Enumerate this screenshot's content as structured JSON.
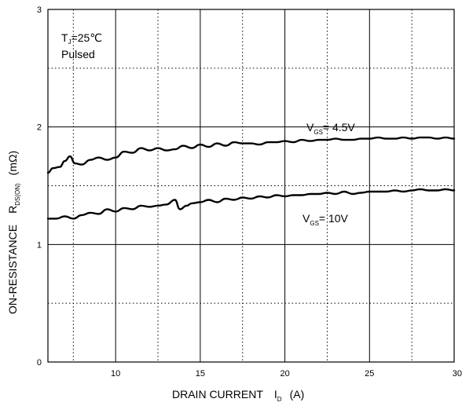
{
  "chart_data": {
    "type": "line",
    "xlabel": {
      "text": "DRAIN CURRENT",
      "symbol": "I",
      "subscript": "D",
      "unit": "(A)"
    },
    "ylabel": {
      "text": "ON-RESISTANCE",
      "symbol": "R",
      "subscript": "DS(ON)",
      "unit": "(mΩ)"
    },
    "xlim": [
      6,
      30
    ],
    "ylim": [
      0,
      3
    ],
    "x_ticks": [
      "10",
      "15",
      "20",
      "25",
      "30"
    ],
    "y_ticks": [
      "0",
      "1",
      "2",
      "3"
    ],
    "grid": {
      "solid_x": [
        10,
        15,
        20,
        25
      ],
      "solid_y": [
        1,
        2
      ],
      "dotted_x": [
        7.5,
        12.5,
        17.5,
        22.5,
        27.5
      ],
      "dotted_y": [
        0.5,
        1.5,
        2.5
      ]
    },
    "conditions": {
      "line1": {
        "symbol": "T",
        "subscript": "J",
        "rest": "=25℃"
      },
      "line2": "Pulsed"
    },
    "series": [
      {
        "name": "4.5V",
        "label": {
          "prefix": "V",
          "subscript": "GS",
          "suffix": "= 4.5V"
        },
        "color": "#000000",
        "points": [
          [
            6.0,
            1.61
          ],
          [
            6.3,
            1.65
          ],
          [
            6.7,
            1.66
          ],
          [
            7.0,
            1.71
          ],
          [
            7.3,
            1.75
          ],
          [
            7.6,
            1.69
          ],
          [
            8.0,
            1.68
          ],
          [
            8.5,
            1.72
          ],
          [
            9.0,
            1.74
          ],
          [
            9.5,
            1.72
          ],
          [
            10.0,
            1.74
          ],
          [
            10.5,
            1.79
          ],
          [
            11.0,
            1.78
          ],
          [
            11.5,
            1.82
          ],
          [
            12.0,
            1.8
          ],
          [
            12.5,
            1.82
          ],
          [
            13.0,
            1.8
          ],
          [
            13.5,
            1.81
          ],
          [
            14.0,
            1.84
          ],
          [
            14.5,
            1.82
          ],
          [
            15.0,
            1.85
          ],
          [
            15.5,
            1.83
          ],
          [
            16.0,
            1.86
          ],
          [
            16.5,
            1.84
          ],
          [
            17.0,
            1.87
          ],
          [
            17.5,
            1.86
          ],
          [
            18.0,
            1.86
          ],
          [
            18.5,
            1.85
          ],
          [
            19.0,
            1.87
          ],
          [
            19.5,
            1.87
          ],
          [
            20.0,
            1.88
          ],
          [
            20.5,
            1.87
          ],
          [
            21.0,
            1.89
          ],
          [
            21.5,
            1.88
          ],
          [
            22.0,
            1.89
          ],
          [
            22.5,
            1.89
          ],
          [
            23.0,
            1.9
          ],
          [
            23.5,
            1.89
          ],
          [
            24.0,
            1.89
          ],
          [
            24.5,
            1.9
          ],
          [
            25.0,
            1.9
          ],
          [
            25.5,
            1.91
          ],
          [
            26.0,
            1.9
          ],
          [
            26.5,
            1.9
          ],
          [
            27.0,
            1.91
          ],
          [
            27.5,
            1.9
          ],
          [
            28.0,
            1.91
          ],
          [
            28.5,
            1.91
          ],
          [
            29.0,
            1.9
          ],
          [
            29.5,
            1.91
          ],
          [
            30.0,
            1.9
          ]
        ]
      },
      {
        "name": "10V",
        "label": {
          "prefix": "V",
          "subscript": "GS",
          "suffix": "= 10V"
        },
        "color": "#000000",
        "points": [
          [
            6.0,
            1.22
          ],
          [
            6.5,
            1.22
          ],
          [
            7.0,
            1.24
          ],
          [
            7.5,
            1.22
          ],
          [
            8.0,
            1.25
          ],
          [
            8.5,
            1.27
          ],
          [
            9.0,
            1.26
          ],
          [
            9.5,
            1.3
          ],
          [
            10.0,
            1.28
          ],
          [
            10.5,
            1.31
          ],
          [
            11.0,
            1.3
          ],
          [
            11.5,
            1.33
          ],
          [
            12.0,
            1.32
          ],
          [
            12.5,
            1.33
          ],
          [
            13.0,
            1.34
          ],
          [
            13.5,
            1.38
          ],
          [
            13.8,
            1.3
          ],
          [
            14.2,
            1.33
          ],
          [
            14.5,
            1.35
          ],
          [
            15.0,
            1.36
          ],
          [
            15.5,
            1.38
          ],
          [
            16.0,
            1.36
          ],
          [
            16.5,
            1.39
          ],
          [
            17.0,
            1.38
          ],
          [
            17.5,
            1.4
          ],
          [
            18.0,
            1.39
          ],
          [
            18.5,
            1.41
          ],
          [
            19.0,
            1.4
          ],
          [
            19.5,
            1.42
          ],
          [
            20.0,
            1.41
          ],
          [
            20.5,
            1.42
          ],
          [
            21.0,
            1.42
          ],
          [
            21.5,
            1.43
          ],
          [
            22.0,
            1.43
          ],
          [
            22.5,
            1.44
          ],
          [
            23.0,
            1.43
          ],
          [
            23.5,
            1.45
          ],
          [
            24.0,
            1.43
          ],
          [
            24.5,
            1.44
          ],
          [
            25.0,
            1.45
          ],
          [
            25.5,
            1.45
          ],
          [
            26.0,
            1.45
          ],
          [
            26.5,
            1.46
          ],
          [
            27.0,
            1.45
          ],
          [
            27.5,
            1.46
          ],
          [
            28.0,
            1.47
          ],
          [
            28.5,
            1.46
          ],
          [
            29.0,
            1.46
          ],
          [
            29.5,
            1.47
          ],
          [
            30.0,
            1.46
          ]
        ]
      }
    ]
  }
}
